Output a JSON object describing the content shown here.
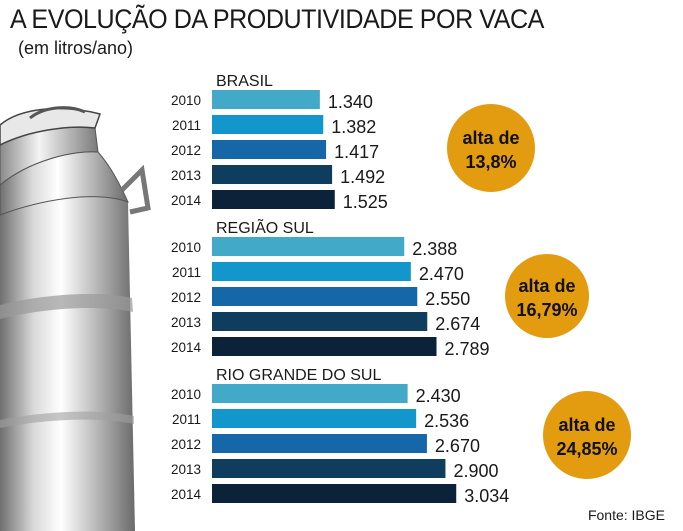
{
  "header": {
    "title": "A EVOLUÇÃO DA PRODUTIVIDADE POR  VACA",
    "subtitle": "(em litros/ano)"
  },
  "source": "Fonte: IBGE",
  "colors": {
    "years": [
      "#43a9c9",
      "#1296cc",
      "#1567a8",
      "#0e3d5e",
      "#0b2238"
    ],
    "badge": "#e39b10"
  },
  "chart_data": [
    {
      "type": "bar",
      "orientation": "horizontal",
      "title": "BRASIL",
      "categories": [
        "2010",
        "2011",
        "2012",
        "2013",
        "2014"
      ],
      "values": [
        1340,
        1382,
        1417,
        1492,
        1525
      ],
      "value_labels": [
        "1.340",
        "1.382",
        "1.417",
        "1.492",
        "1.525"
      ],
      "annotation": [
        "alta de",
        "13,8%"
      ]
    },
    {
      "type": "bar",
      "orientation": "horizontal",
      "title": "REGIÃO SUL",
      "categories": [
        "2010",
        "2011",
        "2012",
        "2013",
        "2014"
      ],
      "values": [
        2388,
        2470,
        2550,
        2674,
        2789
      ],
      "value_labels": [
        "2.388",
        "2.470",
        "2.550",
        "2.674",
        "2.789"
      ],
      "annotation": [
        "alta de",
        "16,79%"
      ]
    },
    {
      "type": "bar",
      "orientation": "horizontal",
      "title": "RIO GRANDE DO SUL",
      "categories": [
        "2010",
        "2011",
        "2012",
        "2013",
        "2014"
      ],
      "values": [
        2430,
        2536,
        2670,
        2900,
        3034
      ],
      "value_labels": [
        "2.430",
        "2.536",
        "2.670",
        "2.900",
        "3.034"
      ],
      "annotation": [
        "alta de",
        "24,85%"
      ]
    }
  ]
}
